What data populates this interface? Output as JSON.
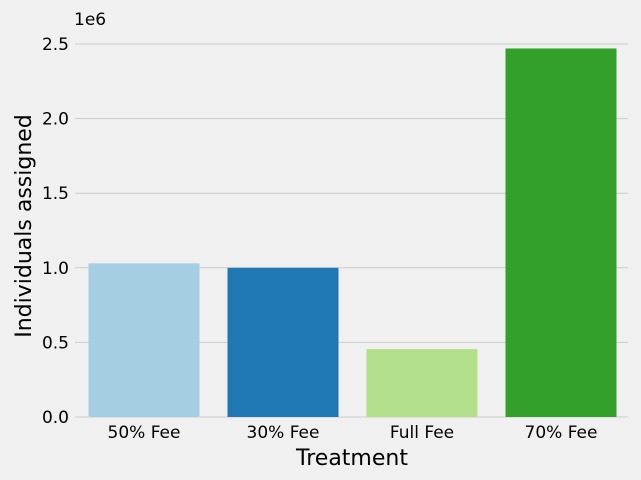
{
  "chart_data": {
    "type": "bar",
    "categories": [
      "50% Fee",
      "30% Fee",
      "Full Fee",
      "70% Fee"
    ],
    "values": [
      1030000,
      1000000,
      455000,
      2470000
    ],
    "colors": [
      "#a6cee3",
      "#1f78b4",
      "#b2df8a",
      "#33a02c"
    ],
    "xlabel": "Treatment",
    "ylabel": "Individuals assigned",
    "y_offset_label": "1e6",
    "y_scale": 1000000,
    "yticks": [
      0.0,
      0.5,
      1.0,
      1.5,
      2.0,
      2.5
    ],
    "ytick_labels": [
      "0.0",
      "0.5",
      "1.0",
      "1.5",
      "2.0",
      "2.5"
    ],
    "ylim": [
      0,
      2600000
    ],
    "grid": true,
    "background": "#f0f0f0",
    "grid_color": "#cbcbcb"
  }
}
